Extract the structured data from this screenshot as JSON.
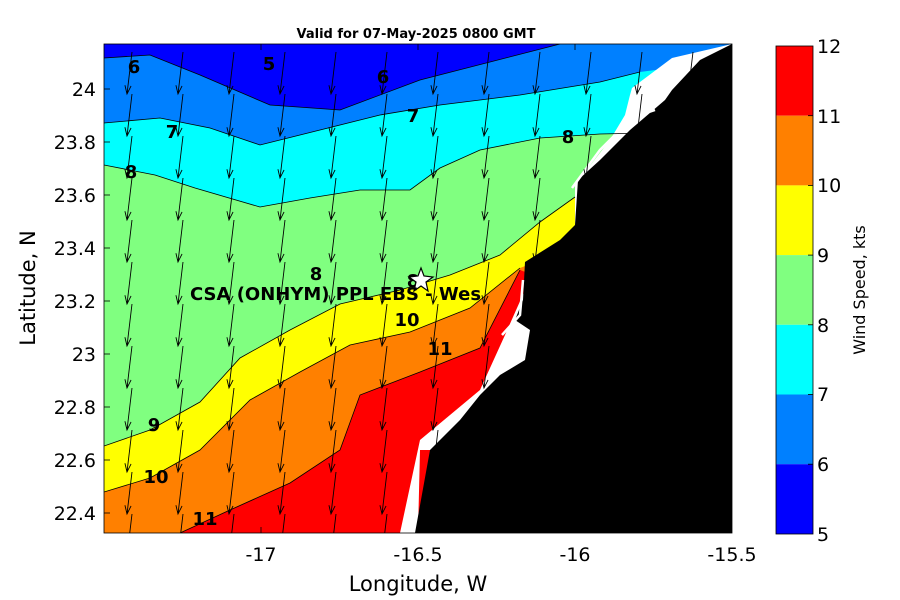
{
  "title": "Valid for 07-May-2025 0800 GMT",
  "xlabel": "Longitude, W",
  "ylabel": "Latitude, N",
  "colorbar_label": "Wind Speed, kts",
  "x_ticks": [
    "-17",
    "-16.5",
    "-16",
    "-15.5"
  ],
  "y_ticks": [
    "24",
    "23.8",
    "23.6",
    "23.4",
    "23.2",
    "23",
    "22.8",
    "22.6",
    "22.4"
  ],
  "colorbar_ticks": [
    "12",
    "11",
    "10",
    "9",
    "8",
    "7",
    "6",
    "5"
  ],
  "colors": {
    "5": "#0000ff",
    "6": "#0080ff",
    "7": "#00ffff",
    "8": "#80ff80",
    "9": "#ffff00",
    "10": "#ff8000",
    "11": "#ff0000",
    "land": "#000000"
  },
  "contour_labels": {
    "c1": "6",
    "c2": "5",
    "c3": "6",
    "c4": "7",
    "c5": "7",
    "c6": "8",
    "c7": "8",
    "c8": "8",
    "c9": "8",
    "c10": "10",
    "c11": "11",
    "c12": "9",
    "c13": "10",
    "c14": "11"
  },
  "site": {
    "name": "CSA (ONHYM) PPL EBS - Wes",
    "icon": "star-icon",
    "lon": -16.5,
    "lat": 23.28
  },
  "chart_data": {
    "type": "heatmap",
    "title": "Valid for 07-May-2025 0800 GMT",
    "xlabel": "Longitude, W",
    "ylabel": "Latitude, N",
    "xlim": [
      -17.47,
      -15.5
    ],
    "ylim": [
      22.33,
      24.16
    ],
    "colorbar": {
      "label": "Wind Speed, kts",
      "range": [
        5,
        12
      ],
      "levels": [
        5,
        6,
        7,
        8,
        9,
        10,
        11,
        12
      ]
    },
    "grid": false,
    "overlay": "wind direction arrows"
  }
}
